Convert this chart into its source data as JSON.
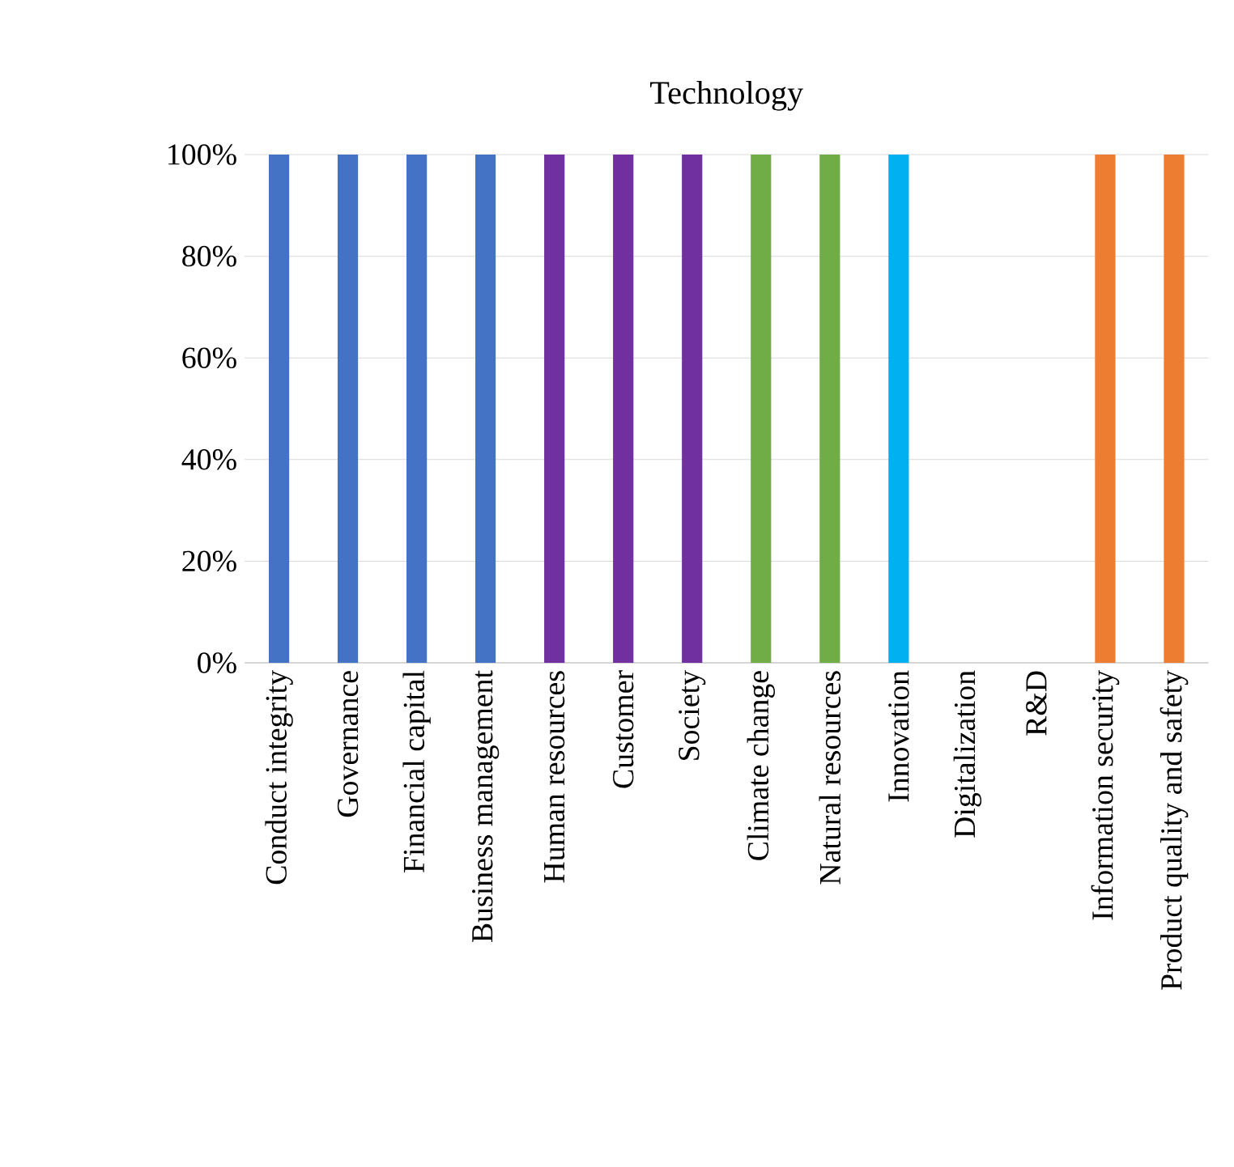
{
  "chart_data": {
    "type": "bar",
    "title": "Technology",
    "categories": [
      "Conduct integrity",
      "Governance",
      "Financial capital",
      "Business management",
      "Human resources",
      "Customer",
      "Society",
      "Climate change",
      "Natural resources",
      "Innovation",
      "Digitalization",
      "R&D",
      "Information security",
      "Product quality and safety"
    ],
    "values": [
      100,
      100,
      100,
      100,
      100,
      100,
      100,
      100,
      100,
      100,
      0,
      0,
      100,
      100
    ],
    "colors": [
      "#4472c4",
      "#4472c4",
      "#4472c4",
      "#4472c4",
      "#7030a0",
      "#7030a0",
      "#7030a0",
      "#70ad47",
      "#70ad47",
      "#00b0f0",
      "#a5a5a5",
      "#a5a5a5",
      "#ed7d31",
      "#ed7d31"
    ],
    "ylim": [
      0,
      100
    ],
    "yticks": [
      {
        "value": 0,
        "label": "0%"
      },
      {
        "value": 20,
        "label": "20%"
      },
      {
        "value": 40,
        "label": "40%"
      },
      {
        "value": 60,
        "label": "60%"
      },
      {
        "value": 80,
        "label": "80%"
      },
      {
        "value": 100,
        "label": "100%"
      }
    ],
    "grid": "y"
  }
}
